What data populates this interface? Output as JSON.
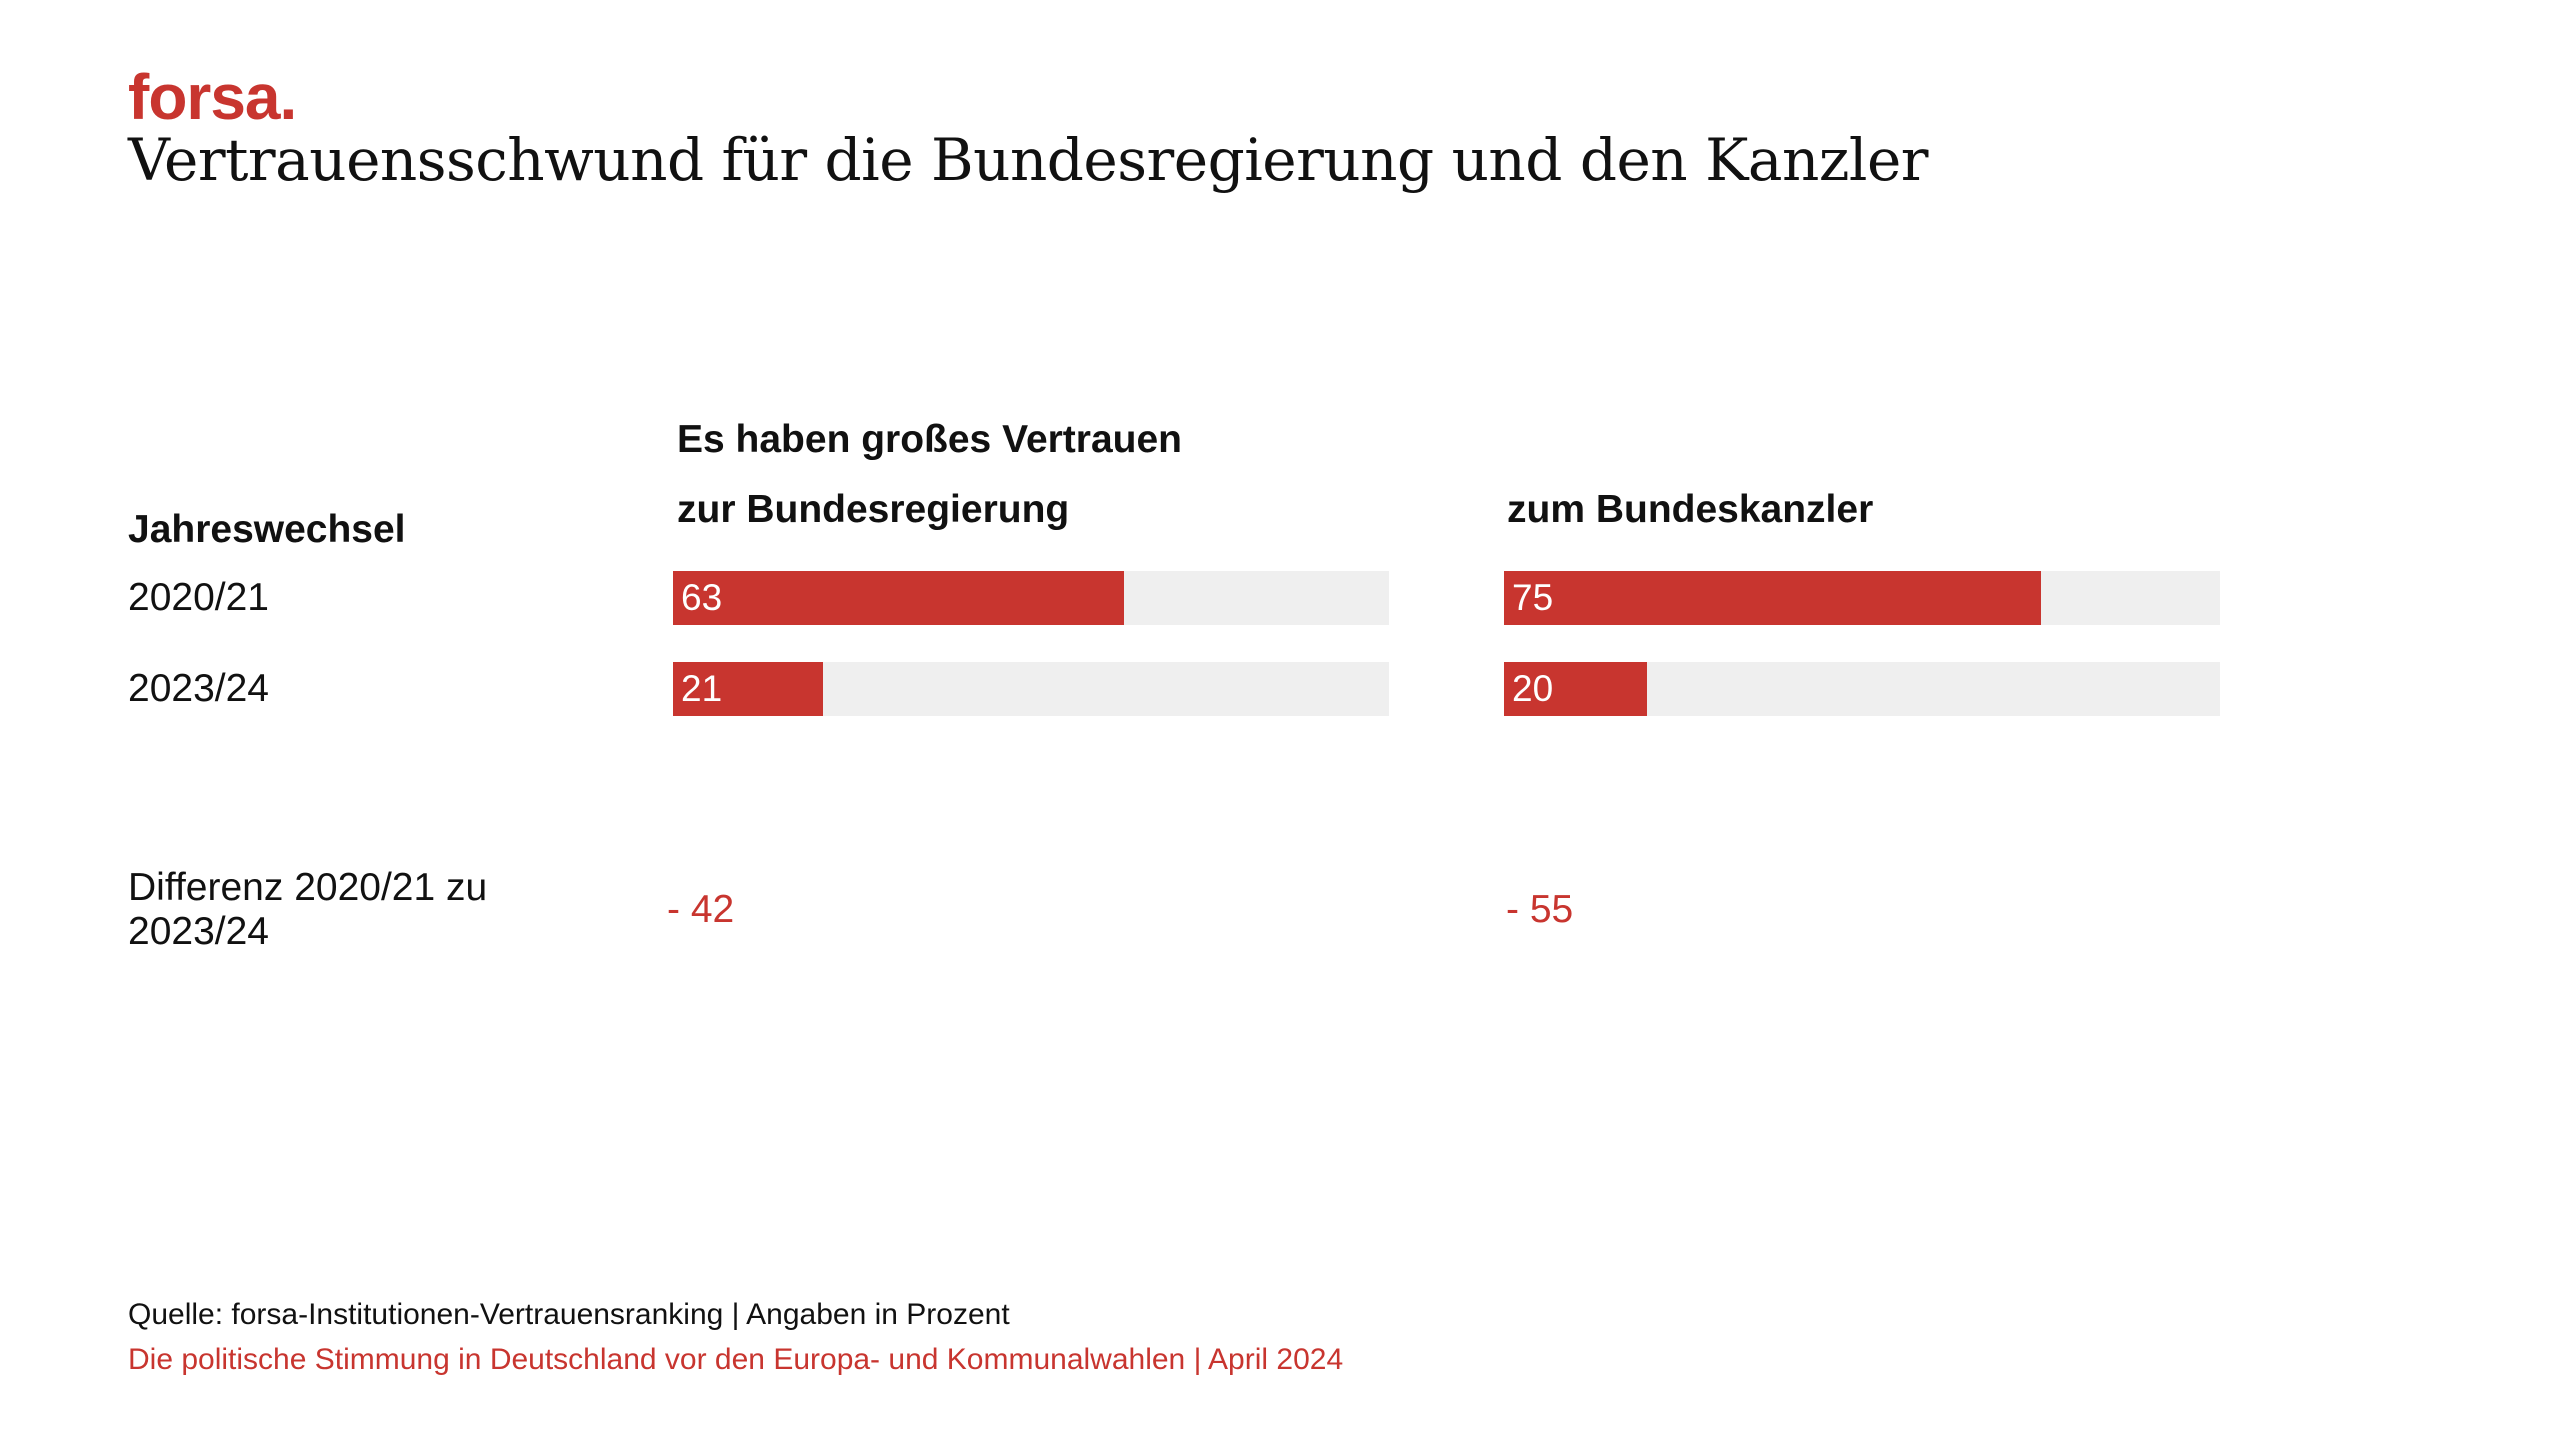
{
  "brand": {
    "logo": "forsa."
  },
  "title": "Vertrauensschwund für die Bundesregierung und den Kanzler",
  "column_heading": "Es haben großes Vertrauen",
  "row_heading": "Jahreswechsel",
  "diff_label": "Differenz 2020/21 zu 2023/24",
  "colors": {
    "accent": "#c8352f",
    "track": "#efefef"
  },
  "chart_data": {
    "type": "bar",
    "orientation": "horizontal",
    "categories": [
      "2020/21",
      "2023/24"
    ],
    "xlim": [
      0,
      100
    ],
    "series": [
      {
        "name": "zur Bundesregierung",
        "values": [
          63,
          21
        ],
        "diff": "- 42"
      },
      {
        "name": "zum Bundeskanzler",
        "values": [
          75,
          20
        ],
        "diff": "- 55"
      }
    ]
  },
  "footer": {
    "source": "Quelle: forsa-Institutionen-Vertrauensranking | Angaben in Prozent",
    "subtitle": "Die politische Stimmung in Deutschland vor den Europa- und Kommunalwahlen | April 2024"
  }
}
